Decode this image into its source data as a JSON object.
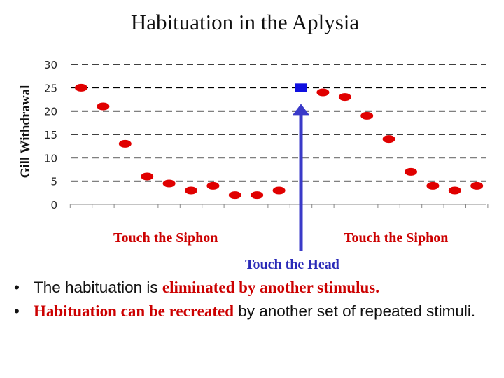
{
  "slide": {
    "title": "Habituation in the Aplysia",
    "labels": {
      "touch_siphon_left": "Touch the Siphon",
      "touch_siphon_right": "Touch the Siphon",
      "touch_head": "Touch the Head"
    },
    "bullets": [
      {
        "marker": "•",
        "plain_before": "The habituation is ",
        "red": "eliminated by another stimulus.",
        "plain_after": ""
      },
      {
        "marker": "•",
        "plain_before": "",
        "red": "Habituation can be recreated",
        "plain_after": " by another set of repeated stimuli."
      }
    ]
  },
  "chart_data": {
    "type": "scatter",
    "title": "Habituation in the Aplysia",
    "xlabel": "",
    "ylabel": "Gill Withdrawal",
    "ylim": [
      0,
      30
    ],
    "yticks": [
      0,
      5,
      10,
      15,
      20,
      25,
      30
    ],
    "grid": "horizontal dashed",
    "x": [
      1,
      2,
      3,
      4,
      5,
      6,
      7,
      8,
      9,
      10,
      11,
      12,
      13,
      14,
      15,
      16,
      17,
      18,
      19
    ],
    "values": [
      25,
      21,
      13,
      6,
      4.5,
      3,
      4,
      2,
      2,
      3,
      25,
      24,
      23,
      19,
      14,
      7,
      4,
      3,
      4
    ],
    "point_kinds": [
      "siphon",
      "siphon",
      "siphon",
      "siphon",
      "siphon",
      "siphon",
      "siphon",
      "siphon",
      "siphon",
      "siphon",
      "head",
      "siphon",
      "siphon",
      "siphon",
      "siphon",
      "siphon",
      "siphon",
      "siphon",
      "siphon"
    ],
    "colors": {
      "siphon": "#e00000",
      "head": "#1010e0",
      "arrow": "#3a3ac8"
    }
  }
}
